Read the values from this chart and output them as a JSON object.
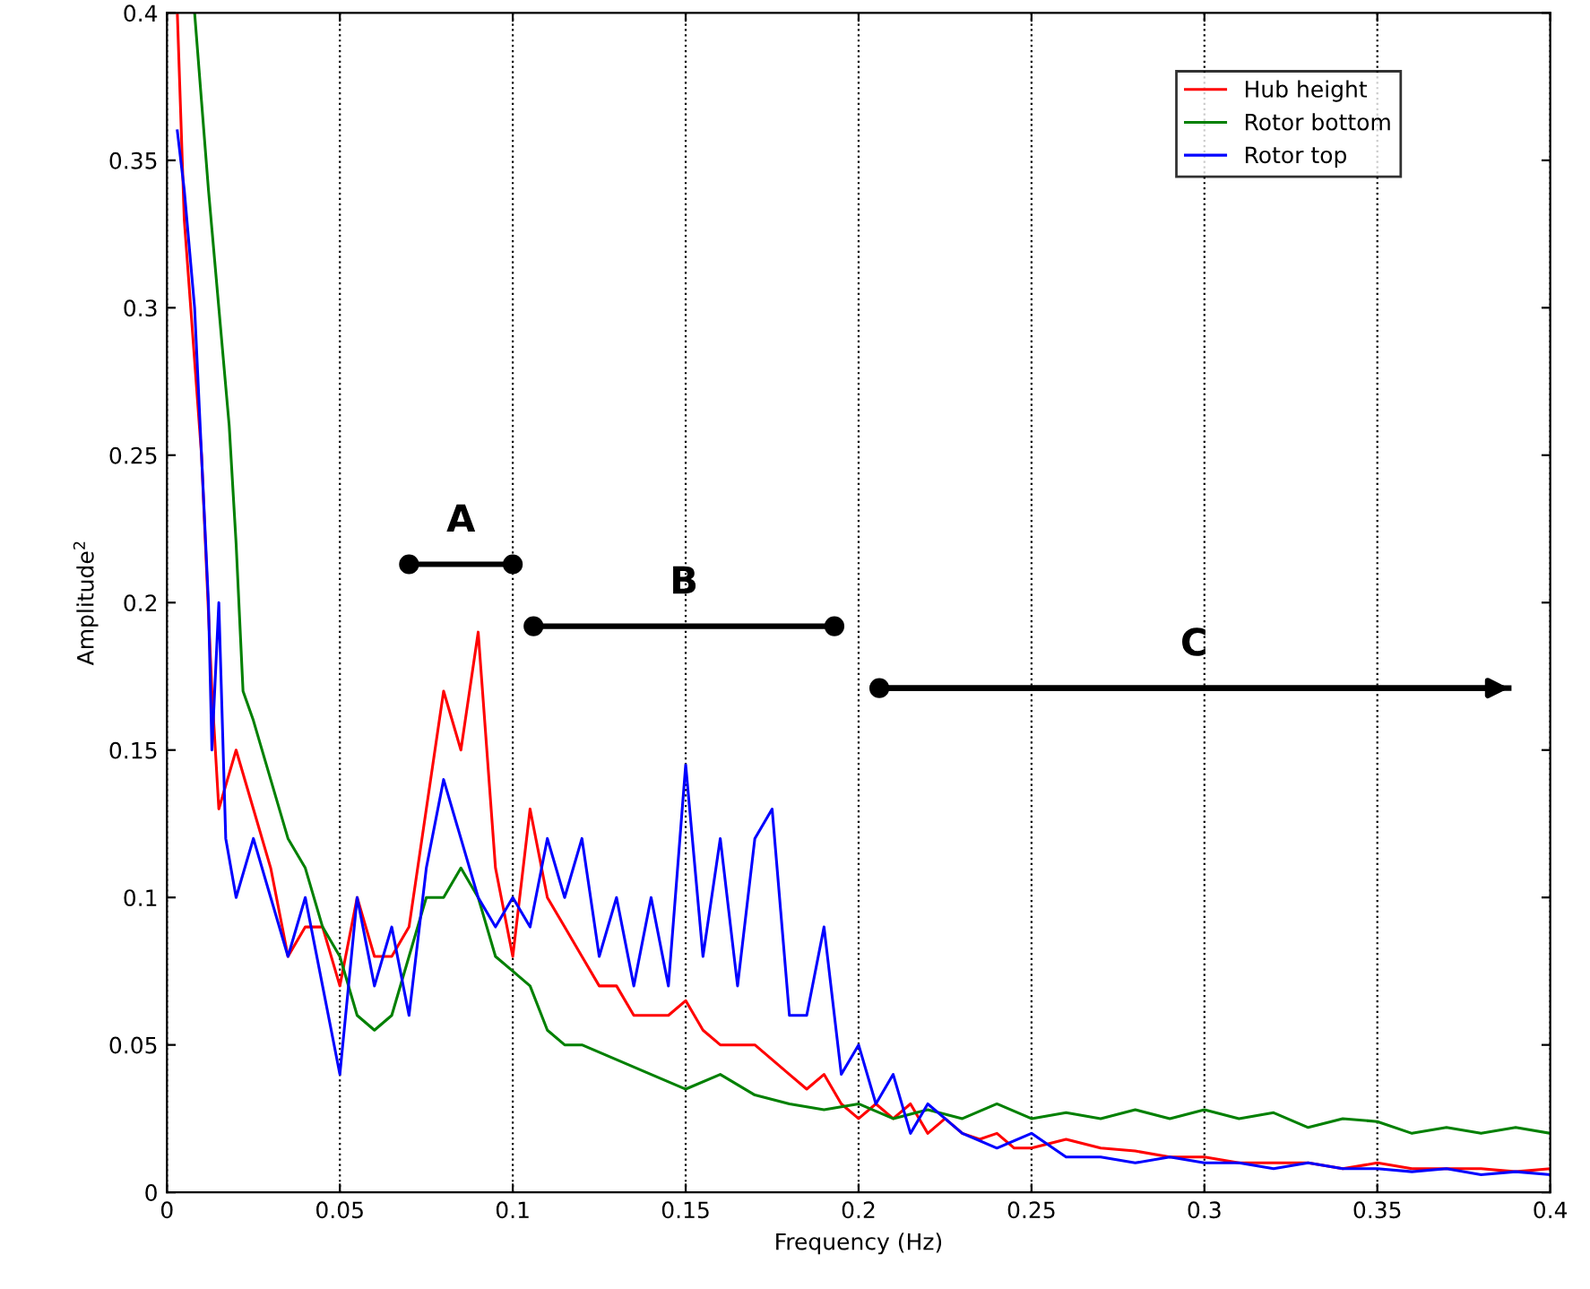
{
  "chart_data": {
    "type": "line",
    "xlabel": "Frequency (Hz)",
    "ylabel": "Amplitude$^{2}$",
    "xlim": [
      0,
      0.4
    ],
    "ylim": [
      0,
      0.4
    ],
    "xticks": [
      0,
      0.05,
      0.1,
      0.15,
      0.2,
      0.25,
      0.3,
      0.35,
      0.4
    ],
    "yticks": [
      0,
      0.05,
      0.1,
      0.15,
      0.2,
      0.25,
      0.3,
      0.35,
      0.4
    ],
    "grid": "x",
    "legend": "top right",
    "line_style": "solid",
    "marker": "none",
    "series": [
      {
        "name": "A",
        "color": "#000000",
        "marker": "circle",
        "x": [
          0.07,
          0.1
        ],
        "values": [
          0.213,
          0.213
        ]
      },
      {
        "name": "B",
        "color": "#000000",
        "marker": "circle",
        "x": [
          0.106,
          0.193
        ],
        "values": [
          0.192,
          0.192
        ]
      },
      {
        "name": "C",
        "color": "#000000",
        "marker": "circle",
        "x": [
          0.206,
          0.388
        ],
        "values": [
          0.171,
          0.171
        ]
      },
      {
        "name": "Hub height",
        "color": "#ff0000",
        "x": [
          0.003,
          0.005,
          0.01,
          0.013,
          0.015,
          0.02,
          0.025,
          0.03,
          0.035,
          0.04,
          0.045,
          0.05,
          0.055,
          0.06,
          0.065,
          0.07,
          0.075,
          0.08,
          0.085,
          0.09,
          0.095,
          0.1,
          0.105,
          0.11,
          0.115,
          0.12,
          0.125,
          0.13,
          0.135,
          0.14,
          0.145,
          0.15,
          0.155,
          0.16,
          0.165,
          0.17,
          0.175,
          0.18,
          0.185,
          0.19,
          0.195,
          0.2,
          0.205,
          0.21,
          0.215,
          0.22,
          0.225,
          0.23,
          0.235,
          0.24,
          0.245,
          0.25,
          0.26,
          0.27,
          0.28,
          0.29,
          0.3,
          0.31,
          0.32,
          0.33,
          0.34,
          0.35,
          0.36,
          0.37,
          0.38,
          0.39,
          0.4
        ],
        "values": [
          0.4,
          0.33,
          0.25,
          0.17,
          0.13,
          0.15,
          0.13,
          0.11,
          0.08,
          0.09,
          0.09,
          0.07,
          0.1,
          0.08,
          0.08,
          0.09,
          0.13,
          0.17,
          0.15,
          0.19,
          0.11,
          0.08,
          0.13,
          0.1,
          0.09,
          0.08,
          0.07,
          0.07,
          0.06,
          0.06,
          0.06,
          0.065,
          0.055,
          0.05,
          0.05,
          0.05,
          0.045,
          0.04,
          0.035,
          0.04,
          0.03,
          0.025,
          0.03,
          0.025,
          0.03,
          0.02,
          0.025,
          0.02,
          0.018,
          0.02,
          0.015,
          0.015,
          0.018,
          0.015,
          0.014,
          0.012,
          0.012,
          0.01,
          0.01,
          0.01,
          0.008,
          0.01,
          0.008,
          0.008,
          0.008,
          0.007,
          0.008
        ]
      },
      {
        "name": "Rotor bottom",
        "color": "#008000",
        "x": [
          0.008,
          0.01,
          0.012,
          0.015,
          0.018,
          0.02,
          0.022,
          0.025,
          0.03,
          0.035,
          0.04,
          0.045,
          0.05,
          0.055,
          0.06,
          0.065,
          0.07,
          0.075,
          0.08,
          0.085,
          0.09,
          0.095,
          0.1,
          0.105,
          0.11,
          0.115,
          0.12,
          0.13,
          0.14,
          0.15,
          0.16,
          0.17,
          0.18,
          0.19,
          0.2,
          0.21,
          0.22,
          0.23,
          0.24,
          0.25,
          0.26,
          0.27,
          0.28,
          0.29,
          0.3,
          0.31,
          0.32,
          0.33,
          0.34,
          0.35,
          0.36,
          0.37,
          0.38,
          0.39,
          0.4
        ],
        "values": [
          0.4,
          0.37,
          0.34,
          0.3,
          0.26,
          0.22,
          0.17,
          0.16,
          0.14,
          0.12,
          0.11,
          0.09,
          0.08,
          0.06,
          0.055,
          0.06,
          0.08,
          0.1,
          0.1,
          0.11,
          0.1,
          0.08,
          0.075,
          0.07,
          0.055,
          0.05,
          0.05,
          0.045,
          0.04,
          0.035,
          0.04,
          0.033,
          0.03,
          0.028,
          0.03,
          0.025,
          0.028,
          0.025,
          0.03,
          0.025,
          0.027,
          0.025,
          0.028,
          0.025,
          0.028,
          0.025,
          0.027,
          0.022,
          0.025,
          0.024,
          0.02,
          0.022,
          0.02,
          0.022,
          0.02
        ]
      },
      {
        "name": "Rotor top",
        "color": "#0000ff",
        "x": [
          0.003,
          0.005,
          0.008,
          0.01,
          0.012,
          0.013,
          0.015,
          0.017,
          0.02,
          0.025,
          0.03,
          0.035,
          0.04,
          0.045,
          0.05,
          0.055,
          0.06,
          0.065,
          0.07,
          0.075,
          0.08,
          0.085,
          0.09,
          0.095,
          0.1,
          0.105,
          0.11,
          0.115,
          0.12,
          0.125,
          0.13,
          0.135,
          0.14,
          0.145,
          0.15,
          0.155,
          0.16,
          0.165,
          0.17,
          0.175,
          0.18,
          0.185,
          0.19,
          0.195,
          0.2,
          0.205,
          0.21,
          0.215,
          0.22,
          0.225,
          0.23,
          0.24,
          0.25,
          0.26,
          0.27,
          0.28,
          0.29,
          0.3,
          0.31,
          0.32,
          0.33,
          0.34,
          0.35,
          0.36,
          0.37,
          0.38,
          0.39,
          0.4
        ],
        "values": [
          0.36,
          0.34,
          0.3,
          0.25,
          0.2,
          0.15,
          0.2,
          0.12,
          0.1,
          0.12,
          0.1,
          0.08,
          0.1,
          0.07,
          0.04,
          0.1,
          0.07,
          0.09,
          0.06,
          0.11,
          0.14,
          0.12,
          0.1,
          0.09,
          0.1,
          0.09,
          0.12,
          0.1,
          0.12,
          0.08,
          0.1,
          0.07,
          0.1,
          0.07,
          0.145,
          0.08,
          0.12,
          0.07,
          0.12,
          0.13,
          0.06,
          0.06,
          0.09,
          0.04,
          0.05,
          0.03,
          0.04,
          0.02,
          0.03,
          0.025,
          0.02,
          0.015,
          0.02,
          0.012,
          0.012,
          0.01,
          0.012,
          0.01,
          0.01,
          0.008,
          0.01,
          0.008,
          0.008,
          0.007,
          0.008,
          0.006,
          0.007,
          0.006
        ]
      }
    ]
  }
}
